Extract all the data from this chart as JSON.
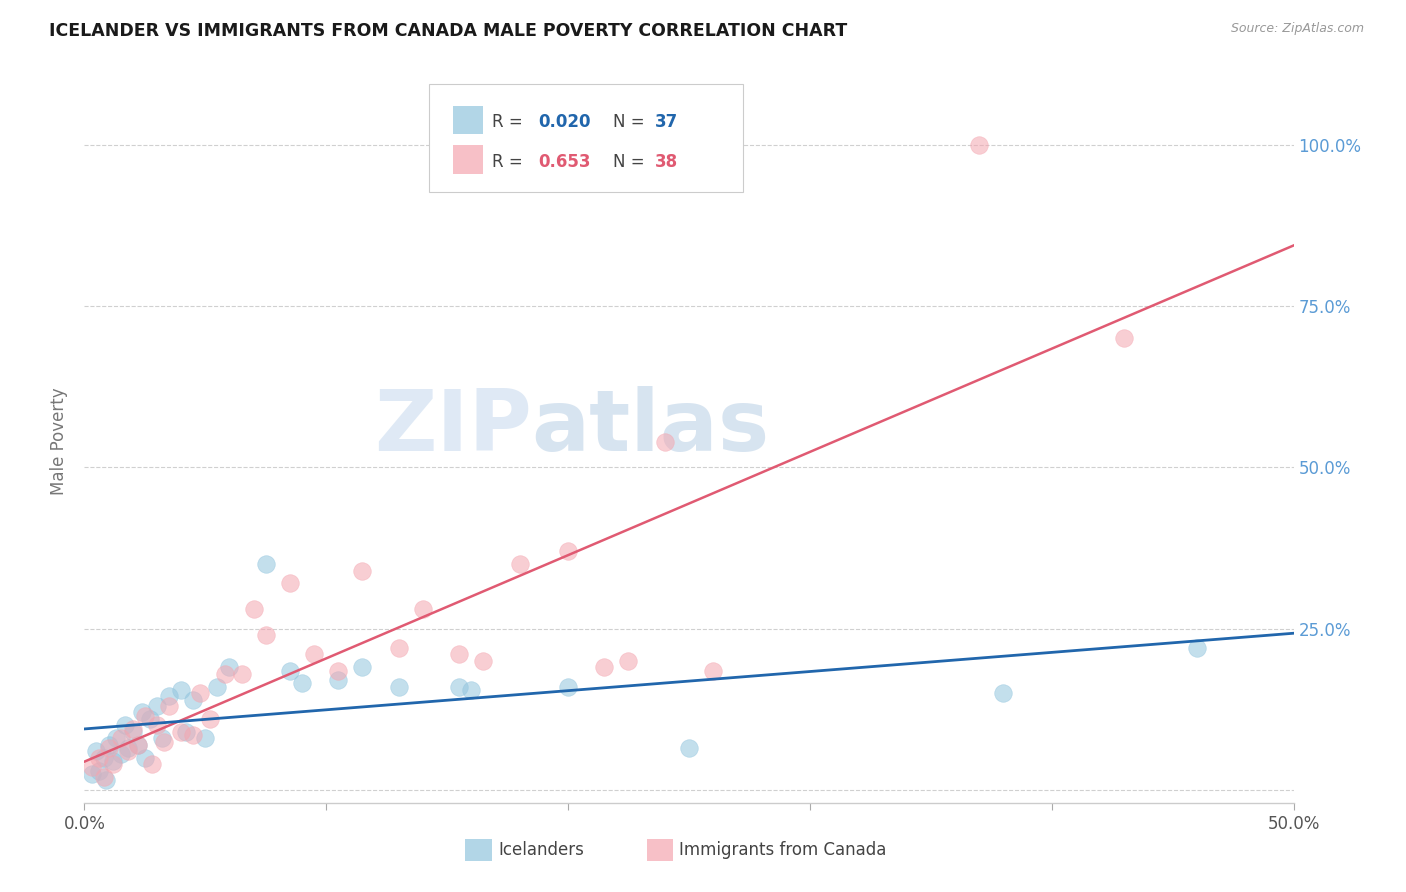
{
  "title": "ICELANDER VS IMMIGRANTS FROM CANADA MALE POVERTY CORRELATION CHART",
  "source": "Source: ZipAtlas.com",
  "ylabel": "Male Poverty",
  "xlim": [
    0.0,
    0.5
  ],
  "ylim": [
    -0.02,
    1.1
  ],
  "yticks": [
    0.0,
    0.25,
    0.5,
    0.75,
    1.0
  ],
  "ytick_labels": [
    "",
    "25.0%",
    "50.0%",
    "75.0%",
    "100.0%"
  ],
  "xticks": [
    0.0,
    0.1,
    0.2,
    0.3,
    0.4,
    0.5
  ],
  "xtick_labels": [
    "0.0%",
    "",
    "",
    "",
    "",
    "50.0%"
  ],
  "blue_color": "#92c5de",
  "pink_color": "#f4a6b0",
  "blue_line_color": "#2166ac",
  "pink_line_color": "#e05a72",
  "watermark_zip": "ZIP",
  "watermark_atlas": "atlas",
  "icelanders_x": [
    0.003,
    0.005,
    0.006,
    0.008,
    0.009,
    0.01,
    0.012,
    0.013,
    0.015,
    0.017,
    0.018,
    0.02,
    0.022,
    0.024,
    0.025,
    0.027,
    0.03,
    0.032,
    0.035,
    0.04,
    0.042,
    0.045,
    0.05,
    0.055,
    0.06,
    0.075,
    0.085,
    0.09,
    0.105,
    0.115,
    0.13,
    0.155,
    0.16,
    0.2,
    0.25,
    0.38,
    0.46
  ],
  "icelanders_y": [
    0.025,
    0.06,
    0.03,
    0.05,
    0.015,
    0.07,
    0.045,
    0.08,
    0.055,
    0.1,
    0.065,
    0.09,
    0.07,
    0.12,
    0.05,
    0.11,
    0.13,
    0.08,
    0.145,
    0.155,
    0.09,
    0.14,
    0.08,
    0.16,
    0.19,
    0.35,
    0.185,
    0.165,
    0.17,
    0.19,
    0.16,
    0.16,
    0.155,
    0.16,
    0.065,
    0.15,
    0.22
  ],
  "canada_x": [
    0.003,
    0.006,
    0.008,
    0.01,
    0.012,
    0.015,
    0.018,
    0.02,
    0.022,
    0.025,
    0.028,
    0.03,
    0.033,
    0.035,
    0.04,
    0.045,
    0.048,
    0.052,
    0.058,
    0.065,
    0.07,
    0.075,
    0.085,
    0.095,
    0.105,
    0.115,
    0.13,
    0.14,
    0.155,
    0.165,
    0.18,
    0.2,
    0.215,
    0.225,
    0.24,
    0.26,
    0.37,
    0.43
  ],
  "canada_y": [
    0.035,
    0.05,
    0.02,
    0.065,
    0.04,
    0.08,
    0.06,
    0.095,
    0.07,
    0.115,
    0.04,
    0.1,
    0.075,
    0.13,
    0.09,
    0.085,
    0.15,
    0.11,
    0.18,
    0.18,
    0.28,
    0.24,
    0.32,
    0.21,
    0.185,
    0.34,
    0.22,
    0.28,
    0.21,
    0.2,
    0.35,
    0.37,
    0.19,
    0.2,
    0.54,
    0.185,
    1.0,
    0.7
  ]
}
